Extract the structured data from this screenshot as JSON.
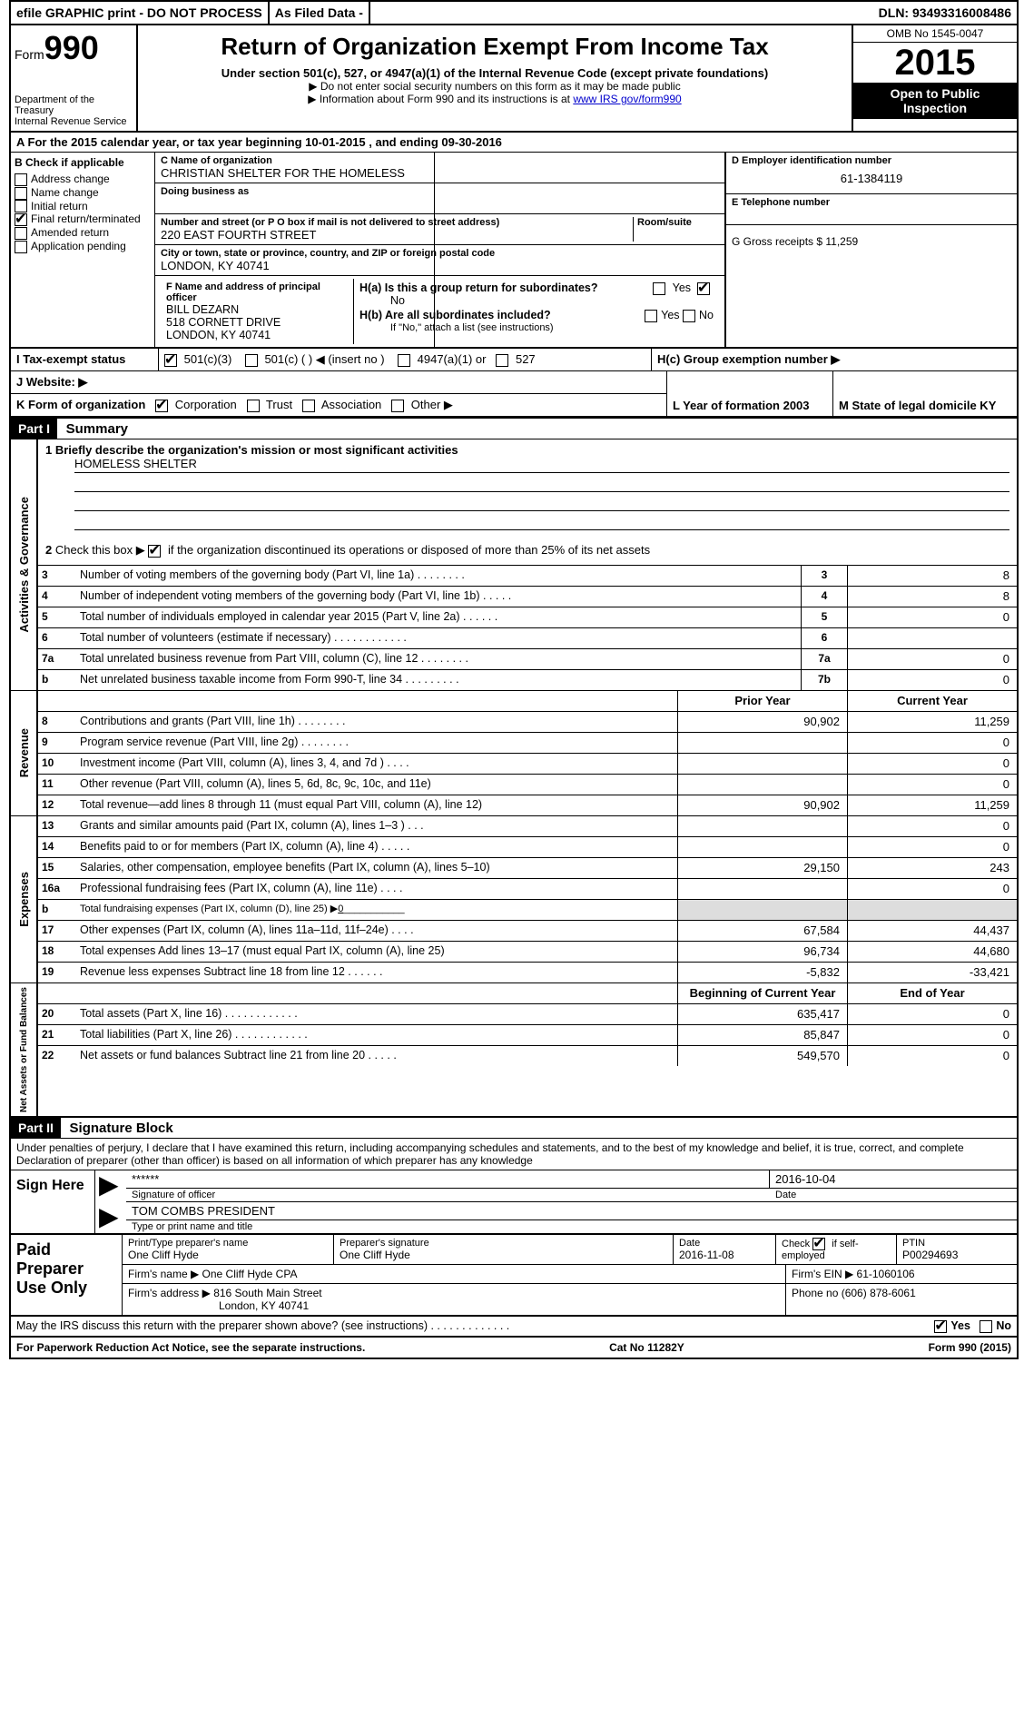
{
  "topbar": {
    "efile": "efile GRAPHIC print - DO NOT PROCESS",
    "filed": "As Filed Data -",
    "dln": "DLN: 93493316008486"
  },
  "header": {
    "form_prefix": "Form",
    "form_num": "990",
    "dept1": "Department of the",
    "dept2": "Treasury",
    "dept3": "Internal Revenue Service",
    "title": "Return of Organization Exempt From Income Tax",
    "sub1": "Under section 501(c), 527, or 4947(a)(1) of the Internal Revenue Code (except private foundations)",
    "sub2a": "▶ Do not enter social security numbers on this form as it may be made public",
    "sub2b_pre": "▶ Information about Form 990 and its instructions is at ",
    "sub2b_link": "www IRS gov/form990",
    "omb": "OMB No 1545-0047",
    "year": "2015",
    "open1": "Open to Public",
    "open2": "Inspection"
  },
  "rowA": {
    "label": "A  For the 2015 calendar year, or tax year beginning 10-01-2015     , and ending 09-30-2016"
  },
  "colB": {
    "label": "B  Check if applicable",
    "items": [
      "Address change",
      "Name change",
      "Initial return",
      "Final return/terminated",
      "Amended return",
      "Application pending"
    ],
    "checked_idx": 3
  },
  "colC": {
    "name_lbl": "C  Name of organization",
    "name": "CHRISTIAN SHELTER FOR THE HOMELESS",
    "dba_lbl": "Doing business as",
    "addr_lbl": "Number and street (or P O  box if mail is not delivered to street address)",
    "room_lbl": "Room/suite",
    "addr": "220 EAST FOURTH STREET",
    "city_lbl": "City or town, state or province, country, and ZIP or foreign postal code",
    "city": "LONDON, KY  40741",
    "f_lbl": "F  Name and address of principal officer",
    "f1": "BILL DEZARN",
    "f2": "518 CORNETT DRIVE",
    "f3": "LONDON, KY  40741"
  },
  "colD": {
    "d_lbl": "D Employer identification number",
    "d_val": "61-1384119",
    "e_lbl": "E Telephone number",
    "g_lbl": "G Gross receipts $ 11,259",
    "ha_lbl": "H(a)  Is this a group return for subordinates?",
    "ha_ans": "No",
    "hb_lbl": "H(b)  Are all subordinates included?",
    "hb_note": "If \"No,\" attach a list  (see instructions)",
    "hc_lbl": "H(c)  Group exemption number ▶"
  },
  "rowI": {
    "label": "I   Tax-exempt status",
    "opts": [
      "501(c)(3)",
      "501(c) (   ) ◀ (insert no )",
      "4947(a)(1) or",
      "527"
    ],
    "checked_idx": 0
  },
  "rowJ": {
    "label": "J   Website: ▶"
  },
  "rowK": {
    "label": "K Form of organization",
    "opts": [
      "Corporation",
      "Trust",
      "Association",
      "Other ▶"
    ],
    "checked_idx": 0,
    "l_lbl": "L Year of formation  2003",
    "m_lbl": "M State of legal domicile  KY"
  },
  "partI": {
    "hdr": "Part I",
    "title": "Summary",
    "q1": "1 Briefly describe the organization's mission or most significant activities",
    "q1_ans": "HOMELESS SHELTER",
    "q2": "2  Check this box ▶      if the organization discontinued its operations or disposed of more than 25% of its net assets",
    "governance_label": "Activities & Governance",
    "revenue_label": "Revenue",
    "expenses_label": "Expenses",
    "netassets_label": "Net Assets or Fund Balances",
    "prior_hdr": "Prior Year",
    "current_hdr": "Current Year",
    "boy_hdr": "Beginning of Current Year",
    "eoy_hdr": "End of Year",
    "gov_lines": [
      {
        "n": "3",
        "t": "Number of voting members of the governing body (Part VI, line 1a)   .    .    .    .    .    .    .    .",
        "b": "3",
        "v": "8"
      },
      {
        "n": "4",
        "t": "Number of independent voting members of the governing body (Part VI, line 1b)   .    .    .    .    .",
        "b": "4",
        "v": "8"
      },
      {
        "n": "5",
        "t": "Total number of individuals employed in calendar year 2015 (Part V, line 2a)   .    .    .    .    .    .",
        "b": "5",
        "v": "0"
      },
      {
        "n": "6",
        "t": "Total number of volunteers (estimate if necessary)   .    .    .    .    .    .    .    .    .    .    .    .",
        "b": "6",
        "v": ""
      },
      {
        "n": "7a",
        "t": "Total unrelated business revenue from Part VIII, column (C), line 12   .    .    .    .    .    .    .    .",
        "b": "7a",
        "v": "0"
      },
      {
        "n": "b",
        "t": "Net unrelated business taxable income from Form 990-T, line 34   .    .    .    .    .    .    .    .    .",
        "b": "7b",
        "v": "0"
      }
    ],
    "rev_lines": [
      {
        "n": "8",
        "t": "Contributions and grants (Part VIII, line 1h)   .    .    .    .    .    .    .    .",
        "p": "90,902",
        "c": "11,259"
      },
      {
        "n": "9",
        "t": "Program service revenue (Part VIII, line 2g)   .    .    .    .    .    .    .    .",
        "p": "",
        "c": "0"
      },
      {
        "n": "10",
        "t": "Investment income (Part VIII, column (A), lines 3, 4, and 7d )   .    .    .    .",
        "p": "",
        "c": "0"
      },
      {
        "n": "11",
        "t": "Other revenue (Part VIII, column (A), lines 5, 6d, 8c, 9c, 10c, and 11e)",
        "p": "",
        "c": "0"
      },
      {
        "n": "12",
        "t": "Total revenue—add lines 8 through 11 (must equal Part VIII, column (A), line 12)",
        "p": "90,902",
        "c": "11,259"
      }
    ],
    "exp_lines": [
      {
        "n": "13",
        "t": "Grants and similar amounts paid (Part IX, column (A), lines 1–3 )   .    .    .",
        "p": "",
        "c": "0"
      },
      {
        "n": "14",
        "t": "Benefits paid to or for members (Part IX, column (A), line 4)   .    .    .    .    .",
        "p": "",
        "c": "0"
      },
      {
        "n": "15",
        "t": "Salaries, other compensation, employee benefits (Part IX, column (A), lines 5–10)",
        "p": "29,150",
        "c": "243"
      },
      {
        "n": "16a",
        "t": "Professional fundraising fees (Part IX, column (A), line 11e)   .    .    .    .",
        "p": "",
        "c": "0"
      },
      {
        "n": "b",
        "t": "Total fundraising expenses (Part IX, column (D), line 25) ▶",
        "p": "gray",
        "c": "gray",
        "inline": "0"
      },
      {
        "n": "17",
        "t": "Other expenses (Part IX, column (A), lines 11a–11d, 11f–24e)   .    .    .    .",
        "p": "67,584",
        "c": "44,437"
      },
      {
        "n": "18",
        "t": "Total expenses  Add lines 13–17 (must equal Part IX, column (A), line 25)",
        "p": "96,734",
        "c": "44,680"
      },
      {
        "n": "19",
        "t": "Revenue less expenses  Subtract line 18 from line 12   .    .    .    .    .    .",
        "p": "-5,832",
        "c": "-33,421"
      }
    ],
    "net_lines": [
      {
        "n": "20",
        "t": "Total assets (Part X, line 16)   .    .    .    .    .    .    .    .    .    .    .    .",
        "p": "635,417",
        "c": "0"
      },
      {
        "n": "21",
        "t": "Total liabilities (Part X, line 26)   .    .    .    .    .    .    .    .    .    .    .    .",
        "p": "85,847",
        "c": "0"
      },
      {
        "n": "22",
        "t": "Net assets or fund balances  Subtract line 21 from line 20   .    .    .    .    .",
        "p": "549,570",
        "c": "0"
      }
    ]
  },
  "partII": {
    "hdr": "Part II",
    "title": "Signature Block",
    "decl": "Under penalties of perjury, I declare that I have examined this return, including accompanying schedules and statements, and to the best of my knowledge and belief, it is true, correct, and complete  Declaration of preparer (other than officer) is based on all information of which preparer has any knowledge"
  },
  "sign": {
    "here": "Sign Here",
    "stars": "******",
    "sigof": "Signature of officer",
    "date": "2016-10-04",
    "date_lbl": "Date",
    "name": "TOM COMBS PRESIDENT",
    "name_lbl": "Type or print name and title"
  },
  "paid": {
    "label": "Paid Preparer Use Only",
    "h1": "Print/Type preparer's name",
    "v1": "One Cliff Hyde",
    "h2": "Preparer's signature",
    "v2": "One Cliff Hyde",
    "h3": "Date",
    "v3": "2016-11-08",
    "h4": "Check        if self-employed",
    "h5": "PTIN",
    "v5": "P00294693",
    "r2a": "Firm's name      ▶ One Cliff Hyde CPA",
    "r2b": "Firm's EIN ▶ 61-1060106",
    "r3a": "Firm's address ▶ 816 South Main Street",
    "r3b": "Phone no  (606) 878-6061",
    "r3c": "London, KY  40741"
  },
  "bottom": {
    "may": "May the IRS discuss this return with the preparer shown above? (see instructions)   .    .    .    .    .    .    .    .    .    .    .    .    .",
    "yes": "Yes",
    "no": "No"
  },
  "footer": {
    "left": "For Paperwork Reduction Act Notice, see the separate instructions.",
    "mid": "Cat No 11282Y",
    "right": "Form 990 (2015)"
  },
  "yesno": {
    "yes": "Yes",
    "no": "No"
  }
}
